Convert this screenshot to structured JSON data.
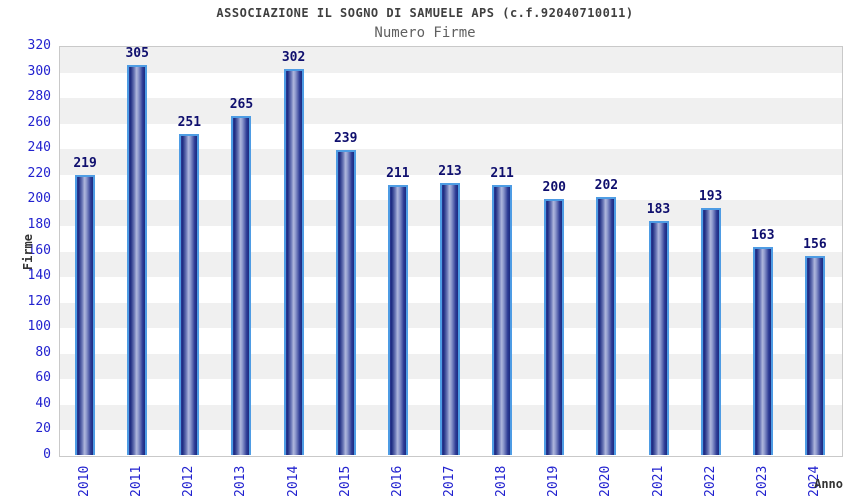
{
  "chart_data": {
    "type": "bar",
    "title": "ASSOCIAZIONE IL SOGNO DI SAMUELE APS (c.f.92040710011)",
    "subtitle": "Numero Firme",
    "xlabel": "Anno",
    "ylabel": "Firme",
    "categories": [
      "2010",
      "2011",
      "2012",
      "2013",
      "2014",
      "2015",
      "2016",
      "2017",
      "2018",
      "2019",
      "2020",
      "2021",
      "2022",
      "2023",
      "2024"
    ],
    "values": [
      219,
      305,
      251,
      265,
      302,
      239,
      211,
      213,
      211,
      200,
      202,
      183,
      193,
      163,
      156
    ],
    "ylim": [
      0,
      320
    ],
    "ytick_step": 20,
    "grid": "alternating horizontal bands, no legend",
    "legend_position": "none",
    "colors": {
      "bar_dark": "#1c2a80",
      "bar_mid": "#2c3a94",
      "bar_light": "#b0b8dd",
      "bar_border": "#4e9ce4",
      "tick_label": "#2222cf",
      "value_label": "#0f0f6e",
      "title": "#3f3f3f",
      "subtitle": "#606060",
      "band": "#f0f0f0",
      "plot_border": "#c9c9c9"
    }
  }
}
